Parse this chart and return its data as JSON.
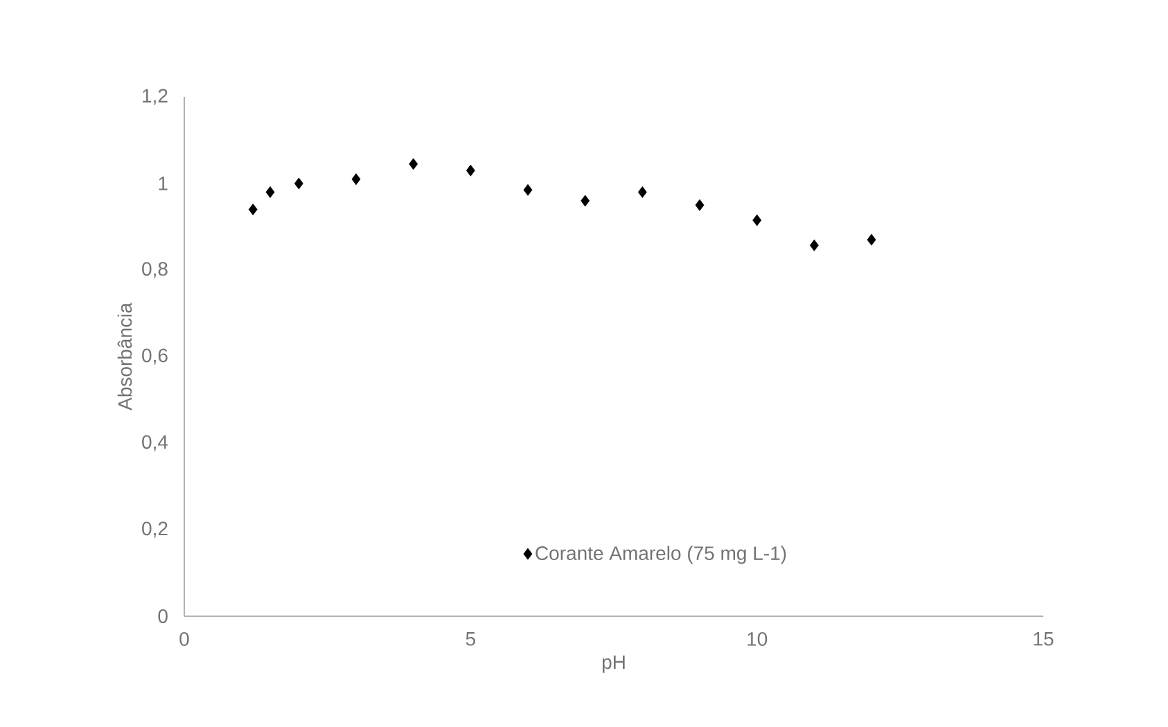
{
  "chart_data": {
    "type": "scatter",
    "xlabel": "pH",
    "ylabel": "Absorbância",
    "x": [
      1.2,
      1.5,
      2,
      3,
      4,
      5,
      6,
      7,
      8,
      9,
      10,
      11,
      12
    ],
    "series": [
      {
        "name": "Corante Amarelo (75 mg L-1)",
        "color": "#000000",
        "values": [
          0.94,
          0.98,
          1.0,
          1.01,
          1.045,
          1.03,
          0.985,
          0.96,
          0.98,
          0.95,
          0.915,
          0.857,
          0.87
        ]
      }
    ],
    "xlim": [
      0,
      15
    ],
    "xticks": [
      0,
      5,
      10,
      15
    ],
    "ylim": [
      0,
      1.2
    ],
    "yticks": [
      {
        "value": 0,
        "label": "0"
      },
      {
        "value": 0.2,
        "label": "0,2"
      },
      {
        "value": 0.4,
        "label": "0,4"
      },
      {
        "value": 0.6,
        "label": "0,6"
      },
      {
        "value": 0.8,
        "label": "0,8"
      },
      {
        "value": 1,
        "label": "1"
      },
      {
        "value": 1.2,
        "label": "1,2"
      }
    ],
    "marker": "diamond",
    "legend": "bottom",
    "grid": false
  }
}
